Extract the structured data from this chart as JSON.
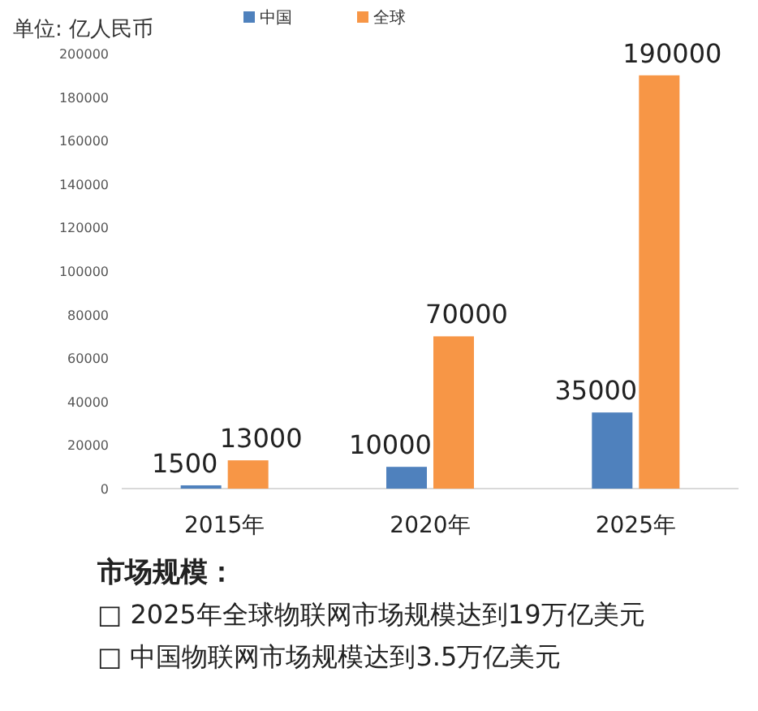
{
  "chart_data": {
    "type": "bar",
    "ylabel": "单位: 亿人民币",
    "categories": [
      "2015年",
      "2020年",
      "2025年"
    ],
    "series": [
      {
        "name": "中国",
        "color": "#4f81bd",
        "values": [
          1500,
          10000,
          35000
        ]
      },
      {
        "name": "全球",
        "color": "#f79646",
        "values": [
          13000,
          70000,
          190000
        ]
      }
    ],
    "ylim": [
      0,
      200000
    ],
    "yticks": [
      0,
      20000,
      40000,
      60000,
      80000,
      100000,
      120000,
      140000,
      160000,
      180000,
      200000
    ],
    "data_labels": true,
    "legend": "top",
    "grid": false,
    "annotations": [
      "市场规模：",
      "□ 2025年全球物联网市场规模达到19万亿美元",
      "□ 中国物联网市场规模达到3.5万亿美元"
    ]
  }
}
